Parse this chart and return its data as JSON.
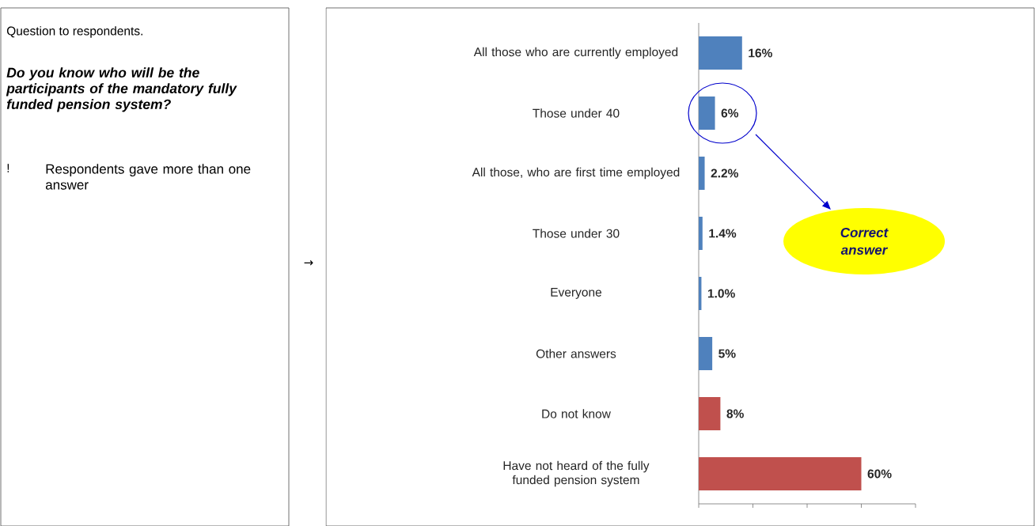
{
  "chart_data": {
    "type": "bar",
    "orientation": "horizontal",
    "categories": [
      "All those who are currently employed",
      "Those under 40",
      "All those, who are first time employed",
      "Those under 30",
      "Everyone",
      "Other answers",
      "Do not know",
      "Have not heard of the fully funded pension system"
    ],
    "values": [
      16,
      6,
      2.2,
      1.4,
      1.0,
      5,
      8,
      60
    ],
    "colors": [
      "#4f81bd",
      "#4f81bd",
      "#4f81bd",
      "#4f81bd",
      "#4f81bd",
      "#4f81bd",
      "#c0504d",
      "#c0504d"
    ],
    "value_labels": [
      "16%",
      "6%",
      "2.2%",
      "1.4%",
      "1.0%",
      "5%",
      "8%",
      "60%"
    ],
    "xlim": [
      0,
      80
    ],
    "xticks": [
      {
        "value": 0,
        "label": null
      },
      {
        "value": 20,
        "label": null
      },
      {
        "value": 40,
        "label": null
      },
      {
        "value": 60,
        "label": null
      },
      {
        "value": 80,
        "label": null
      }
    ],
    "tick_labels": "y",
    "annotations": [
      "Question to respondents.",
      "Do you know who will be the participants of the mandatory fully funded pension system?",
      "!",
      "Respondents gave more than one answer",
      "→",
      "Correct answer"
    ]
  }
}
